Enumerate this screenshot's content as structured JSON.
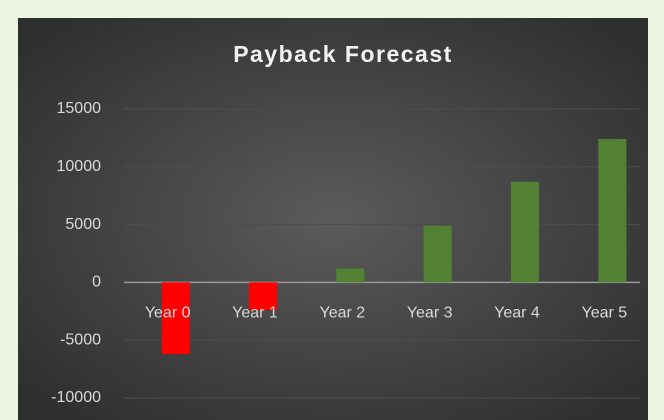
{
  "chart_data": {
    "type": "bar",
    "title": "Payback Forecast",
    "categories": [
      "Year 0",
      "Year 1",
      "Year 2",
      "Year 3",
      "Year 4",
      "Year 5"
    ],
    "values": [
      -6200,
      -2400,
      1200,
      4900,
      8700,
      12400
    ],
    "colors": [
      "#ff0000",
      "#ff0000",
      "#548235",
      "#548235",
      "#548235",
      "#548235"
    ],
    "ylim": [
      -10000,
      15000
    ],
    "yticks": [
      15000,
      10000,
      5000,
      0,
      -5000,
      -10000
    ],
    "grid": true
  }
}
